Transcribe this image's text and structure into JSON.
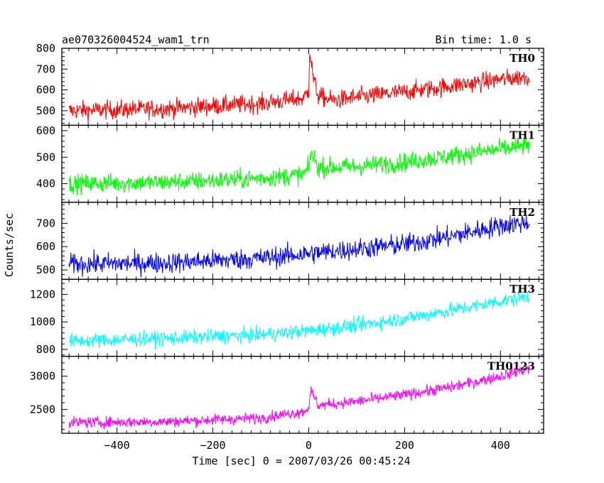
{
  "header": {
    "title": "ae070326004524_wam1_trn",
    "bin_time": "Bin time: 1.0 s"
  },
  "axes": {
    "ylabel": "Counts/sec",
    "xlabel": "Time [sec] 0 = 2007/03/26 00:45:24",
    "x_ticks": [
      -400,
      -200,
      0,
      200,
      400
    ],
    "x_tick_labels": [
      "−400",
      "−200",
      "0",
      "200",
      "400"
    ]
  },
  "chart_data": [
    {
      "type": "line",
      "name": "TH0",
      "color": "#ff0000",
      "xlim": [
        -515,
        490
      ],
      "ylim": [
        430,
        800
      ],
      "yticks": [
        500,
        600,
        700,
        800
      ],
      "x": [
        -500,
        -300,
        -100,
        -10,
        0,
        2,
        10,
        20,
        50,
        100,
        200,
        300,
        400,
        460
      ],
      "y": [
        500,
        510,
        535,
        560,
        600,
        790,
        650,
        570,
        550,
        565,
        590,
        620,
        650,
        665
      ],
      "noise": 40
    },
    {
      "type": "line",
      "name": "TH1",
      "color": "#00ff00",
      "xlim": [
        -515,
        490
      ],
      "ylim": [
        330,
        620
      ],
      "yticks": [
        400,
        500,
        600
      ],
      "x": [
        -500,
        -300,
        -100,
        -10,
        0,
        5,
        20,
        100,
        200,
        300,
        400,
        460
      ],
      "y": [
        400,
        405,
        420,
        435,
        460,
        520,
        460,
        465,
        480,
        505,
        530,
        545
      ],
      "noise": 32
    },
    {
      "type": "line",
      "name": "TH2",
      "color": "#0000ff",
      "xlim": [
        -515,
        490
      ],
      "ylim": [
        460,
        790
      ],
      "yticks": [
        500,
        600,
        700
      ],
      "x": [
        -500,
        -300,
        -100,
        0,
        100,
        200,
        300,
        400,
        460
      ],
      "y": [
        525,
        530,
        550,
        570,
        590,
        610,
        645,
        690,
        705
      ],
      "noise": 40
    },
    {
      "type": "line",
      "name": "TH3",
      "color": "#00ffff",
      "xlim": [
        -515,
        490
      ],
      "ylim": [
        750,
        1310
      ],
      "yticks": [
        800,
        1000,
        1200
      ],
      "x": [
        -500,
        -300,
        -100,
        0,
        100,
        200,
        300,
        400,
        460
      ],
      "y": [
        860,
        880,
        905,
        935,
        975,
        1025,
        1085,
        1150,
        1185
      ],
      "noise": 48
    },
    {
      "type": "line",
      "name": "TH0123",
      "color": "#ff00ff",
      "xlim": [
        -515,
        490
      ],
      "ylim": [
        2140,
        3300
      ],
      "yticks": [
        2500,
        3000
      ],
      "x": [
        -500,
        -300,
        -100,
        -10,
        0,
        5,
        20,
        100,
        200,
        300,
        400,
        460
      ],
      "y": [
        2300,
        2315,
        2370,
        2470,
        2540,
        2780,
        2560,
        2620,
        2720,
        2840,
        3000,
        3120
      ],
      "noise": 75
    }
  ]
}
